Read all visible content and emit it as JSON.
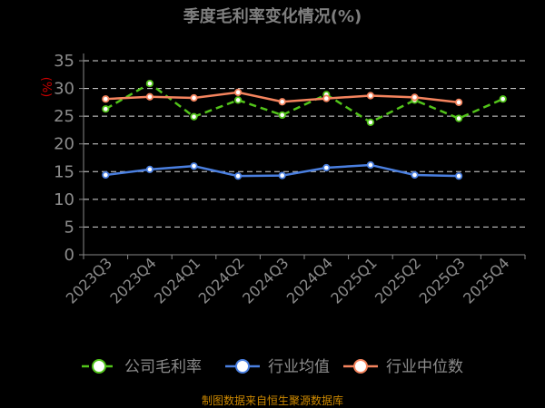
{
  "chart_data": {
    "type": "line",
    "title": "季度毛利率变化情况(%)",
    "unit_label": "(%)",
    "categories": [
      "2023Q3",
      "2023Q4",
      "2024Q1",
      "2024Q2",
      "2024Q3",
      "2024Q4",
      "2025Q1",
      "2025Q2",
      "2025Q3",
      "2025Q4"
    ],
    "y_ticks": [
      "0",
      "5",
      "10",
      "15",
      "20",
      "25",
      "30",
      "35"
    ],
    "ylim": [
      0,
      35
    ],
    "grid": true,
    "legend_position": "bottom",
    "series": [
      {
        "name": "公司毛利率",
        "color": "#52c41a",
        "dashed": true,
        "values": [
          26.3,
          30.9,
          24.9,
          27.9,
          25.2,
          28.9,
          23.9,
          27.9,
          24.6,
          28.1
        ]
      },
      {
        "name": "行业均值",
        "color": "#4a7fe0",
        "dashed": false,
        "values": [
          14.4,
          15.4,
          16.0,
          14.2,
          14.3,
          15.7,
          16.2,
          14.4,
          14.2,
          null
        ]
      },
      {
        "name": "行业中位数",
        "color": "#f5845e",
        "dashed": false,
        "values": [
          28.1,
          28.5,
          28.3,
          29.3,
          27.6,
          28.2,
          28.7,
          28.4,
          27.5,
          null
        ]
      }
    ]
  },
  "source_text": "制图数据来自恒生聚源数据库"
}
